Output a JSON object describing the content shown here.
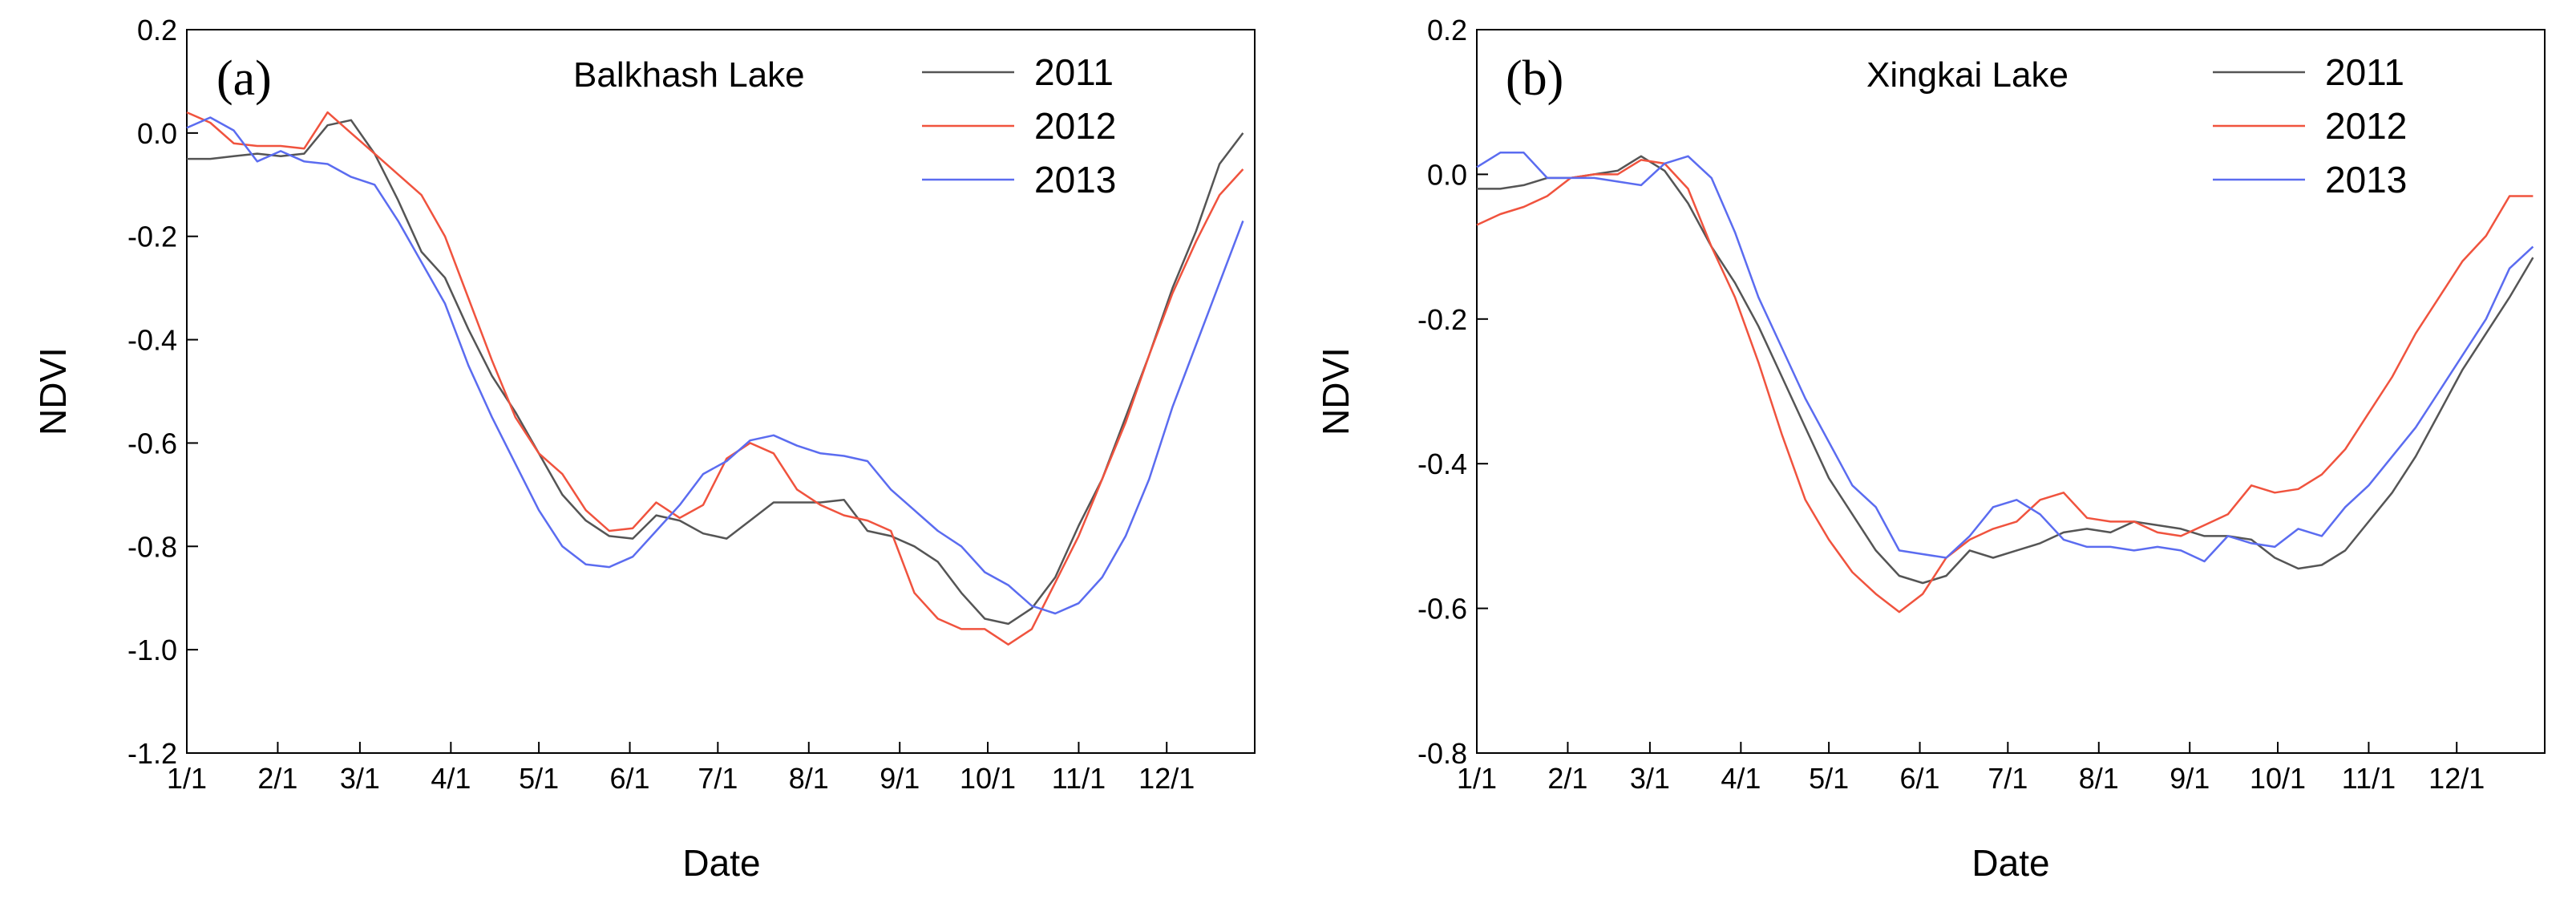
{
  "chart_data": [
    {
      "type": "line",
      "panel_label": "(a)",
      "title": "Balkhash Lake",
      "xlabel": "Date",
      "ylabel": "NDVI",
      "ylim": [
        -1.2,
        0.2
      ],
      "yticks": [
        "-1.2",
        "-1.0",
        "-0.8",
        "-0.6",
        "-0.4",
        "-0.2",
        "0.0",
        "0.2"
      ],
      "ytick_values": [
        -1.2,
        -1.0,
        -0.8,
        -0.6,
        -0.4,
        -0.2,
        0.0,
        0.2
      ],
      "xlim": [
        1,
        365
      ],
      "xticks": [
        "1/1",
        "2/1",
        "3/1",
        "4/1",
        "5/1",
        "6/1",
        "7/1",
        "8/1",
        "9/1",
        "10/1",
        "11/1",
        "12/1"
      ],
      "xtick_values": [
        1,
        32,
        60,
        91,
        121,
        152,
        182,
        213,
        244,
        274,
        305,
        335
      ],
      "legend_position": "top-right",
      "series": [
        {
          "name": "2011",
          "color": "#555555",
          "x": [
            1,
            9,
            17,
            25,
            33,
            41,
            49,
            57,
            65,
            73,
            81,
            89,
            97,
            105,
            113,
            121,
            129,
            137,
            145,
            153,
            161,
            169,
            177,
            185,
            193,
            201,
            209,
            217,
            225,
            233,
            241,
            249,
            257,
            265,
            273,
            281,
            289,
            297,
            305,
            313,
            321,
            329,
            337,
            345,
            353,
            361
          ],
          "y": [
            -0.05,
            -0.05,
            -0.045,
            -0.04,
            -0.045,
            -0.04,
            0.015,
            0.025,
            -0.04,
            -0.13,
            -0.23,
            -0.28,
            -0.38,
            -0.47,
            -0.54,
            -0.62,
            -0.7,
            -0.75,
            -0.78,
            -0.785,
            -0.74,
            -0.75,
            -0.775,
            -0.785,
            -0.75,
            -0.715,
            -0.715,
            -0.715,
            -0.71,
            -0.77,
            -0.78,
            -0.8,
            -0.83,
            -0.89,
            -0.94,
            -0.95,
            -0.92,
            -0.86,
            -0.76,
            -0.67,
            -0.55,
            -0.43,
            -0.3,
            -0.19,
            -0.06,
            0.0
          ]
        },
        {
          "name": "2012",
          "color": "#f0533e",
          "x": [
            1,
            9,
            17,
            25,
            33,
            41,
            49,
            57,
            65,
            73,
            81,
            89,
            97,
            105,
            113,
            121,
            129,
            137,
            145,
            153,
            161,
            169,
            177,
            185,
            193,
            201,
            209,
            217,
            225,
            233,
            241,
            249,
            257,
            265,
            273,
            281,
            289,
            297,
            305,
            313,
            321,
            329,
            337,
            345,
            353,
            361
          ],
          "y": [
            0.04,
            0.02,
            -0.02,
            -0.025,
            -0.025,
            -0.03,
            0.04,
            0.0,
            -0.04,
            -0.08,
            -0.12,
            -0.2,
            -0.32,
            -0.44,
            -0.55,
            -0.62,
            -0.66,
            -0.73,
            -0.77,
            -0.765,
            -0.715,
            -0.745,
            -0.72,
            -0.63,
            -0.6,
            -0.62,
            -0.69,
            -0.72,
            -0.74,
            -0.75,
            -0.77,
            -0.89,
            -0.94,
            -0.96,
            -0.96,
            -0.99,
            -0.96,
            -0.87,
            -0.78,
            -0.67,
            -0.56,
            -0.43,
            -0.31,
            -0.21,
            -0.12,
            -0.07
          ]
        },
        {
          "name": "2013",
          "color": "#5b6cf0",
          "x": [
            1,
            9,
            17,
            25,
            33,
            41,
            49,
            57,
            65,
            73,
            81,
            89,
            97,
            105,
            113,
            121,
            129,
            137,
            145,
            153,
            161,
            169,
            177,
            185,
            193,
            201,
            209,
            217,
            225,
            233,
            241,
            249,
            257,
            265,
            273,
            281,
            289,
            297,
            305,
            313,
            321,
            329,
            337,
            345,
            353,
            361
          ],
          "y": [
            0.01,
            0.03,
            0.005,
            -0.055,
            -0.035,
            -0.055,
            -0.06,
            -0.085,
            -0.1,
            -0.17,
            -0.25,
            -0.33,
            -0.45,
            -0.55,
            -0.64,
            -0.73,
            -0.8,
            -0.835,
            -0.84,
            -0.82,
            -0.77,
            -0.72,
            -0.66,
            -0.635,
            -0.595,
            -0.585,
            -0.605,
            -0.62,
            -0.625,
            -0.635,
            -0.69,
            -0.73,
            -0.77,
            -0.8,
            -0.85,
            -0.875,
            -0.915,
            -0.93,
            -0.91,
            -0.86,
            -0.78,
            -0.67,
            -0.53,
            -0.41,
            -0.29,
            -0.17
          ]
        }
      ]
    },
    {
      "type": "line",
      "panel_label": "(b)",
      "title": "Xingkai Lake",
      "xlabel": "Date",
      "ylabel": "NDVI",
      "ylim": [
        -0.8,
        0.2
      ],
      "yticks": [
        "-0.8",
        "-0.6",
        "-0.4",
        "-0.2",
        "0.0",
        "0.2"
      ],
      "ytick_values": [
        -0.8,
        -0.6,
        -0.4,
        -0.2,
        0.0,
        0.2
      ],
      "xlim": [
        1,
        365
      ],
      "xticks": [
        "1/1",
        "2/1",
        "3/1",
        "4/1",
        "5/1",
        "6/1",
        "7/1",
        "8/1",
        "9/1",
        "10/1",
        "11/1",
        "12/1"
      ],
      "xtick_values": [
        1,
        32,
        60,
        91,
        121,
        152,
        182,
        213,
        244,
        274,
        305,
        335
      ],
      "legend_position": "top-right",
      "series": [
        {
          "name": "2011",
          "color": "#555555",
          "x": [
            1,
            9,
            17,
            25,
            33,
            41,
            49,
            57,
            65,
            73,
            81,
            89,
            97,
            105,
            113,
            121,
            129,
            137,
            145,
            153,
            161,
            169,
            177,
            185,
            193,
            201,
            209,
            217,
            225,
            233,
            241,
            249,
            257,
            265,
            273,
            281,
            289,
            297,
            305,
            313,
            321,
            329,
            337,
            345,
            353,
            361
          ],
          "y": [
            -0.02,
            -0.02,
            -0.015,
            -0.005,
            -0.005,
            0.0,
            0.005,
            0.025,
            0.005,
            -0.04,
            -0.1,
            -0.15,
            -0.21,
            -0.28,
            -0.35,
            -0.42,
            -0.47,
            -0.52,
            -0.555,
            -0.565,
            -0.555,
            -0.52,
            -0.53,
            -0.52,
            -0.51,
            -0.495,
            -0.49,
            -0.495,
            -0.48,
            -0.485,
            -0.49,
            -0.5,
            -0.5,
            -0.505,
            -0.53,
            -0.545,
            -0.54,
            -0.52,
            -0.48,
            -0.44,
            -0.39,
            -0.33,
            -0.27,
            -0.22,
            -0.17,
            -0.115
          ]
        },
        {
          "name": "2012",
          "color": "#f0533e",
          "x": [
            1,
            9,
            17,
            25,
            33,
            41,
            49,
            57,
            65,
            73,
            81,
            89,
            97,
            105,
            113,
            121,
            129,
            137,
            145,
            153,
            161,
            169,
            177,
            185,
            193,
            201,
            209,
            217,
            225,
            233,
            241,
            249,
            257,
            265,
            273,
            281,
            289,
            297,
            305,
            313,
            321,
            329,
            337,
            345,
            353,
            361
          ],
          "y": [
            -0.07,
            -0.055,
            -0.045,
            -0.03,
            -0.005,
            0.0,
            0.0,
            0.02,
            0.015,
            -0.02,
            -0.1,
            -0.17,
            -0.26,
            -0.36,
            -0.45,
            -0.505,
            -0.55,
            -0.58,
            -0.605,
            -0.58,
            -0.53,
            -0.505,
            -0.49,
            -0.48,
            -0.45,
            -0.44,
            -0.475,
            -0.48,
            -0.48,
            -0.495,
            -0.5,
            -0.485,
            -0.47,
            -0.43,
            -0.44,
            -0.435,
            -0.415,
            -0.38,
            -0.33,
            -0.28,
            -0.22,
            -0.17,
            -0.12,
            -0.085,
            -0.03,
            -0.03
          ]
        },
        {
          "name": "2013",
          "color": "#5b6cf0",
          "x": [
            1,
            9,
            17,
            25,
            33,
            41,
            49,
            57,
            65,
            73,
            81,
            89,
            97,
            105,
            113,
            121,
            129,
            137,
            145,
            153,
            161,
            169,
            177,
            185,
            193,
            201,
            209,
            217,
            225,
            233,
            241,
            249,
            257,
            265,
            273,
            281,
            289,
            297,
            305,
            313,
            321,
            329,
            337,
            345,
            353,
            361
          ],
          "y": [
            0.01,
            0.03,
            0.03,
            -0.005,
            -0.005,
            -0.005,
            -0.01,
            -0.015,
            0.015,
            0.025,
            -0.005,
            -0.08,
            -0.17,
            -0.24,
            -0.31,
            -0.37,
            -0.43,
            -0.46,
            -0.52,
            -0.525,
            -0.53,
            -0.5,
            -0.46,
            -0.45,
            -0.47,
            -0.505,
            -0.515,
            -0.515,
            -0.52,
            -0.515,
            -0.52,
            -0.535,
            -0.5,
            -0.51,
            -0.515,
            -0.49,
            -0.5,
            -0.46,
            -0.43,
            -0.39,
            -0.35,
            -0.3,
            -0.25,
            -0.2,
            -0.13,
            -0.1
          ]
        }
      ]
    }
  ]
}
